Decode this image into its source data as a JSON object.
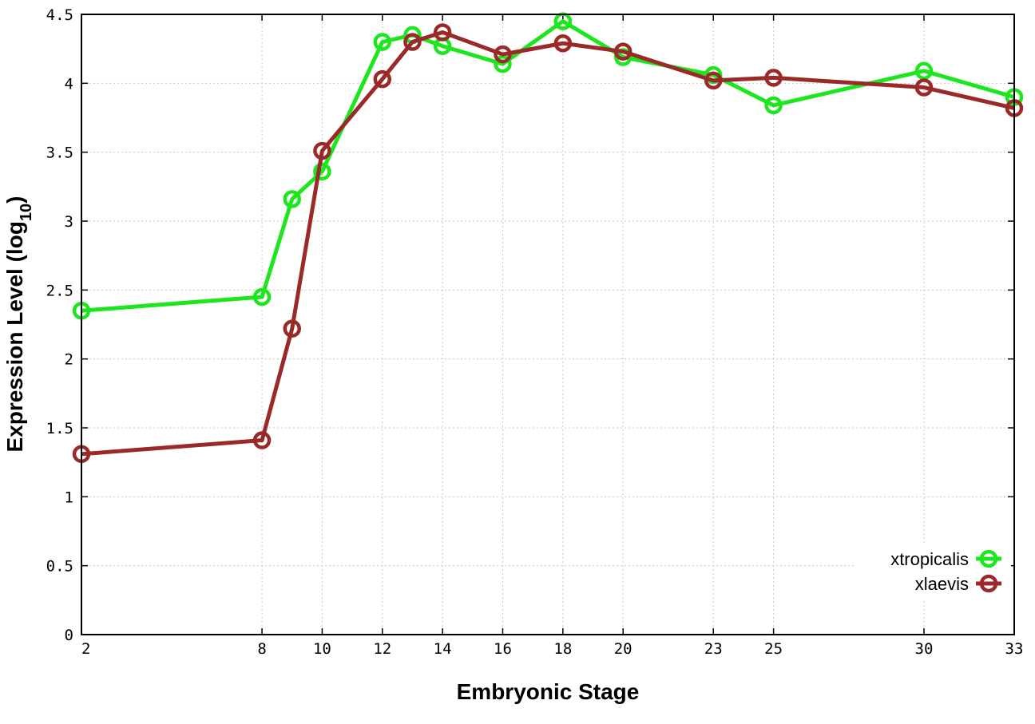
{
  "chart_data": {
    "type": "line",
    "title": "",
    "xlabel": "Embryonic Stage",
    "ylabel": "Expression Level (log",
    "ylabel_subscript": "10",
    "ylabel_close": ")",
    "xlim": [
      2,
      33
    ],
    "ylim": [
      0,
      4.5
    ],
    "xticks": [
      2,
      8,
      10,
      12,
      14,
      16,
      18,
      20,
      23,
      25,
      30,
      33
    ],
    "yticks": [
      0,
      0.5,
      1,
      1.5,
      2,
      2.5,
      3,
      3.5,
      4,
      4.5
    ],
    "ytick_labels": [
      "0",
      "0.5",
      "1",
      "1.5",
      "2",
      "2.5",
      "3",
      "3.5",
      "4",
      "4.5"
    ],
    "grid": true,
    "legend_position": "bottom-right",
    "x": [
      2,
      8,
      9,
      10,
      12,
      13,
      14,
      16,
      18,
      20,
      23,
      25,
      30,
      33
    ],
    "series": [
      {
        "name": "xtropicalis",
        "color": "#1ee61e",
        "values": [
          2.35,
          2.45,
          3.16,
          3.36,
          4.3,
          4.35,
          4.27,
          4.14,
          4.45,
          4.19,
          4.06,
          3.84,
          4.09,
          3.9
        ]
      },
      {
        "name": "xlaevis",
        "color": "#9a2a2a",
        "values": [
          1.31,
          1.41,
          2.22,
          3.51,
          4.03,
          4.3,
          4.37,
          4.21,
          4.29,
          4.23,
          4.02,
          4.04,
          3.97,
          3.82
        ]
      }
    ]
  }
}
